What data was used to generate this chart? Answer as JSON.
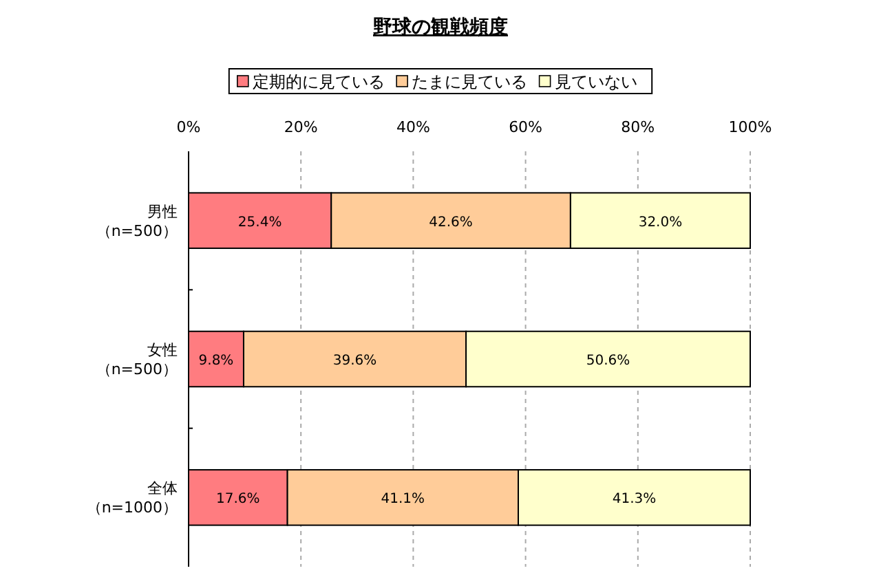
{
  "chart_data": {
    "type": "bar",
    "title": "野球の観戦頻度",
    "orientation": "horizontal",
    "stacked": true,
    "categories": [
      "男性（n=500）",
      "女性（n=500）",
      "全体（n=1000）"
    ],
    "series": [
      {
        "name": "定期的に見ている",
        "color": "#ff7c80",
        "values": [
          25.4,
          9.8,
          17.6
        ],
        "value_labels": [
          "25.4%",
          "9.8%",
          "17.6%"
        ]
      },
      {
        "name": "たまに見ている",
        "color": "#ffcc99",
        "values": [
          42.6,
          39.6,
          41.1
        ],
        "value_labels": [
          "42.6%",
          "39.6%",
          "41.1%"
        ]
      },
      {
        "name": "見ていない",
        "color": "#ffffcc",
        "values": [
          32.0,
          50.6,
          41.3
        ],
        "value_labels": [
          "32.0%",
          "50.6%",
          "41.3%"
        ]
      }
    ],
    "xlim": [
      0,
      100
    ],
    "xticks": [
      {
        "value": 0,
        "label": "0%"
      },
      {
        "value": 20,
        "label": "20%"
      },
      {
        "value": 40,
        "label": "40%"
      },
      {
        "value": 60,
        "label": "60%"
      },
      {
        "value": 80,
        "label": "80%"
      },
      {
        "value": 100,
        "label": "100%"
      }
    ],
    "grid": "x",
    "legend": "top"
  }
}
